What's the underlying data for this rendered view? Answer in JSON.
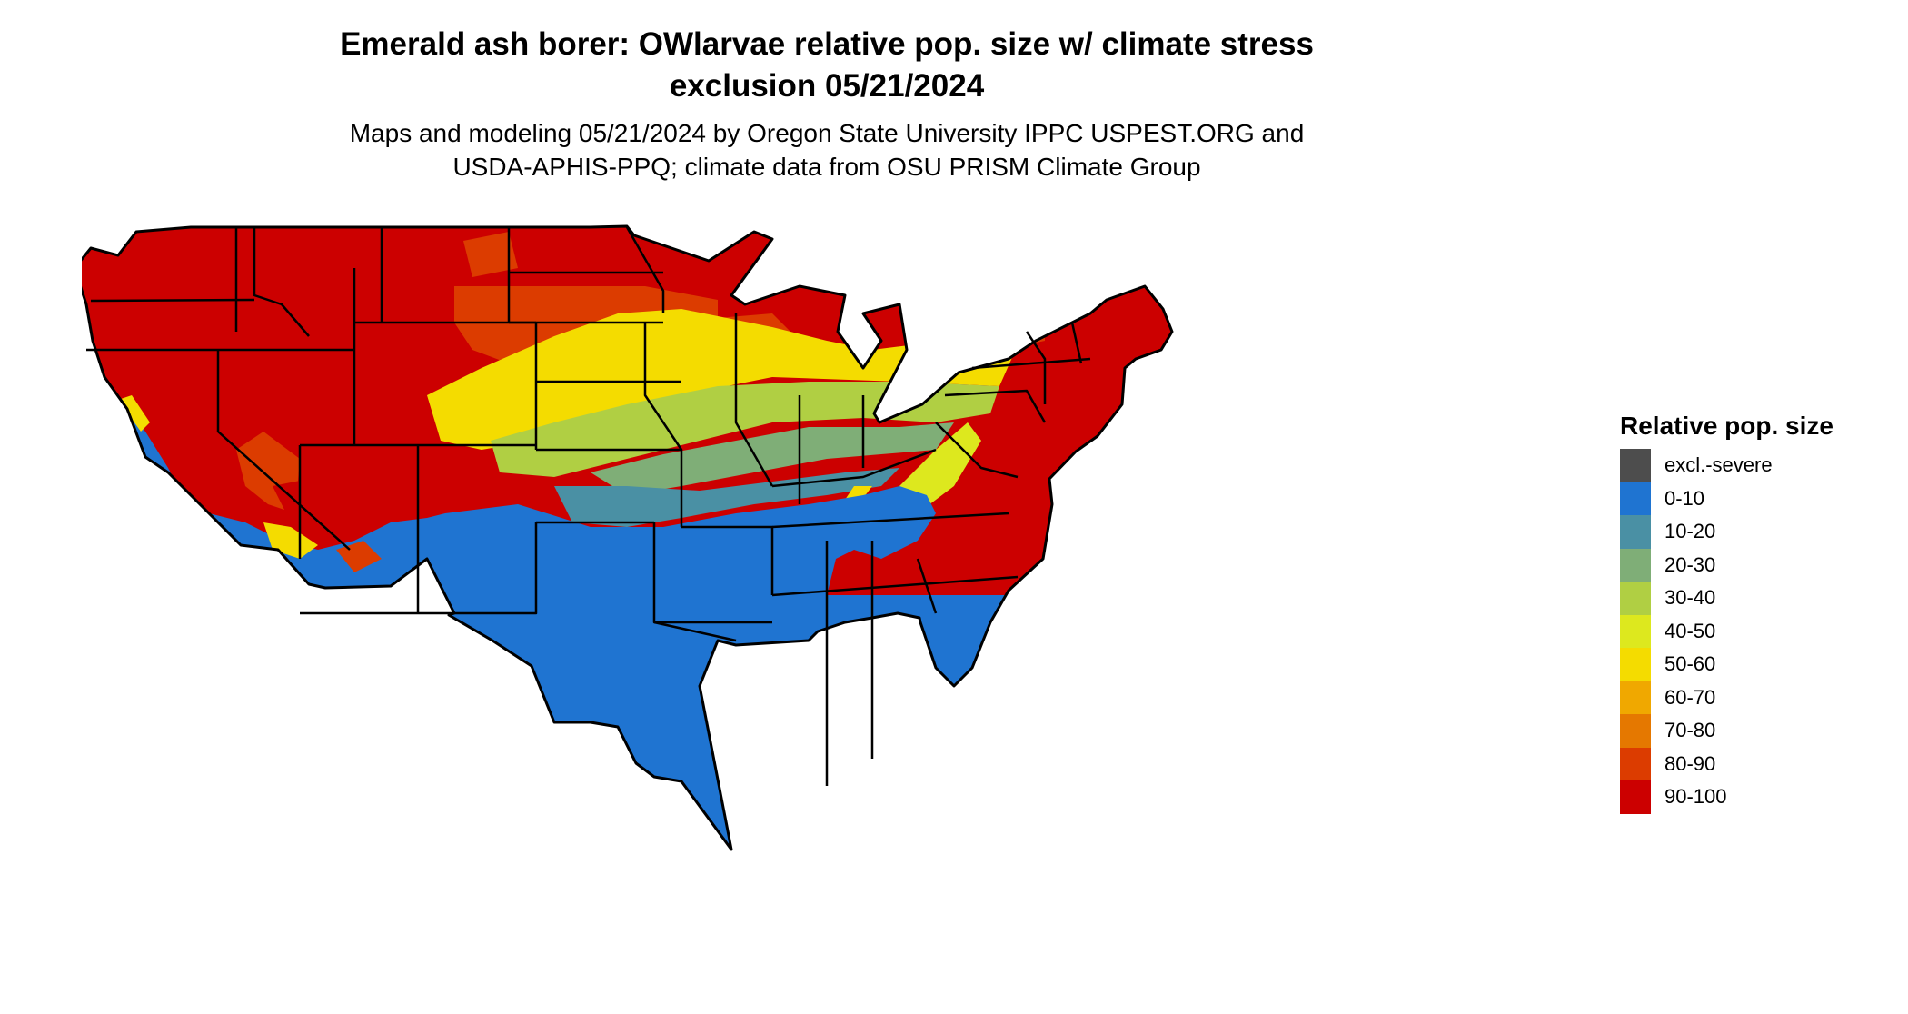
{
  "header": {
    "title_lines": [
      "Emerald ash borer: OWlarvae relative pop. size w/ climate stress",
      "exclusion 05/21/2024"
    ],
    "subtitle_lines": [
      "Maps and modeling 05/21/2024 by Oregon State University IPPC USPEST.ORG and",
      "USDA-APHIS-PPQ; climate data from OSU PRISM Climate Group"
    ]
  },
  "legend": {
    "title": "Relative pop. size",
    "items": [
      {
        "label": "excl.-severe",
        "color": "#4d4d4d"
      },
      {
        "label": "0-10",
        "color": "#1f74d1"
      },
      {
        "label": "10-20",
        "color": "#4a90a4"
      },
      {
        "label": "20-30",
        "color": "#7fae77"
      },
      {
        "label": "30-40",
        "color": "#b0cf43"
      },
      {
        "label": "40-50",
        "color": "#dde81e"
      },
      {
        "label": "50-60",
        "color": "#f4dc00"
      },
      {
        "label": "60-70",
        "color": "#f0a800"
      },
      {
        "label": "70-80",
        "color": "#e57800"
      },
      {
        "label": "80-90",
        "color": "#dc3c00"
      },
      {
        "label": "90-100",
        "color": "#cc0000"
      }
    ]
  },
  "map": {
    "region": "contiguous United States",
    "colors": {
      "low": "#1f74d1",
      "b1020": "#4a90a4",
      "b2030": "#7fae77",
      "b3040": "#b0cf43",
      "b4050": "#dde81e",
      "b5060": "#f4dc00",
      "b6070": "#f0a800",
      "b7080": "#e57800",
      "b8090": "#dc3c00",
      "high": "#cc0000",
      "outline": "#000000"
    }
  }
}
